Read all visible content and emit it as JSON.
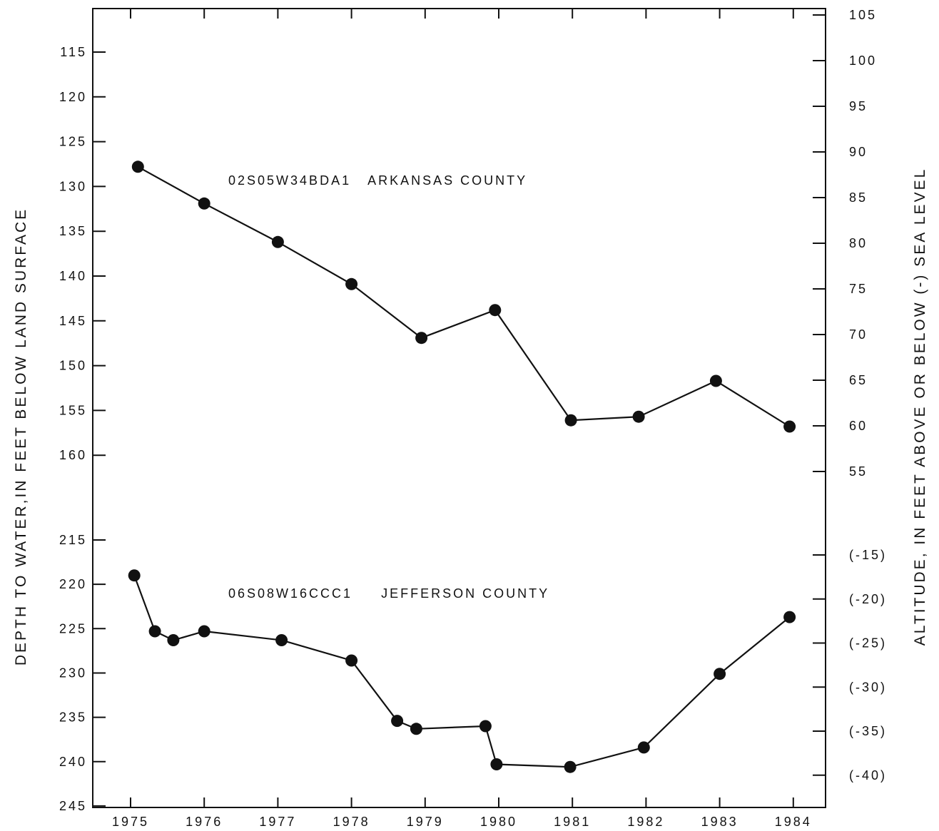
{
  "chart_data": {
    "type": "line",
    "left_axis": {
      "label": "DEPTH TO WATER,IN FEET BELOW LAND SURFACE",
      "upper_ticks": [
        "115",
        "120",
        "125",
        "130",
        "135",
        "140",
        "145",
        "150",
        "155",
        "160"
      ],
      "lower_ticks": [
        "215",
        "220",
        "225",
        "230",
        "235",
        "240",
        "245"
      ],
      "inverted": true
    },
    "right_axis": {
      "label": "ALTITUDE, IN FEET ABOVE OR BELOW (-) SEA LEVEL",
      "upper_ticks": [
        "105",
        "100",
        "95",
        "90",
        "85",
        "80",
        "75",
        "70",
        "65",
        "60",
        "55"
      ],
      "lower_ticks": [
        "(-15)",
        "(-20)",
        "(-25)",
        "(-30)",
        "(-35)",
        "(-40)"
      ]
    },
    "x_axis": {
      "tick_labels": [
        "1975",
        "1976",
        "1977",
        "1978",
        "1979",
        "1980",
        "1981",
        "1982",
        "1983",
        "1984"
      ],
      "xlim": [
        1974.6,
        1984.5
      ]
    },
    "series": [
      {
        "name": "02S05W34BDA1   ARKANSAS COUNTY",
        "band": "upper",
        "points": [
          {
            "x": 1975.1,
            "y": 127.8
          },
          {
            "x": 1976.0,
            "y": 131.9
          },
          {
            "x": 1977.0,
            "y": 136.2
          },
          {
            "x": 1978.0,
            "y": 140.9
          },
          {
            "x": 1978.95,
            "y": 146.9
          },
          {
            "x": 1979.95,
            "y": 143.8
          },
          {
            "x": 1980.98,
            "y": 156.1
          },
          {
            "x": 1981.9,
            "y": 155.7
          },
          {
            "x": 1982.95,
            "y": 151.7
          },
          {
            "x": 1983.95,
            "y": 156.8
          }
        ]
      },
      {
        "name": "06S08W16CCC1     JEFFERSON COUNTY",
        "band": "lower",
        "points": [
          {
            "x": 1975.05,
            "y": 219.0
          },
          {
            "x": 1975.33,
            "y": 225.3
          },
          {
            "x": 1975.58,
            "y": 226.3
          },
          {
            "x": 1976.0,
            "y": 225.3
          },
          {
            "x": 1977.05,
            "y": 226.3
          },
          {
            "x": 1978.0,
            "y": 228.6
          },
          {
            "x": 1978.62,
            "y": 235.4
          },
          {
            "x": 1978.88,
            "y": 236.3
          },
          {
            "x": 1979.82,
            "y": 236.0
          },
          {
            "x": 1979.97,
            "y": 240.3
          },
          {
            "x": 1980.97,
            "y": 240.6
          },
          {
            "x": 1981.97,
            "y": 238.4
          },
          {
            "x": 1983.0,
            "y": 230.1
          },
          {
            "x": 1983.95,
            "y": 223.7
          }
        ]
      }
    ],
    "grid": false,
    "legend": "none"
  }
}
